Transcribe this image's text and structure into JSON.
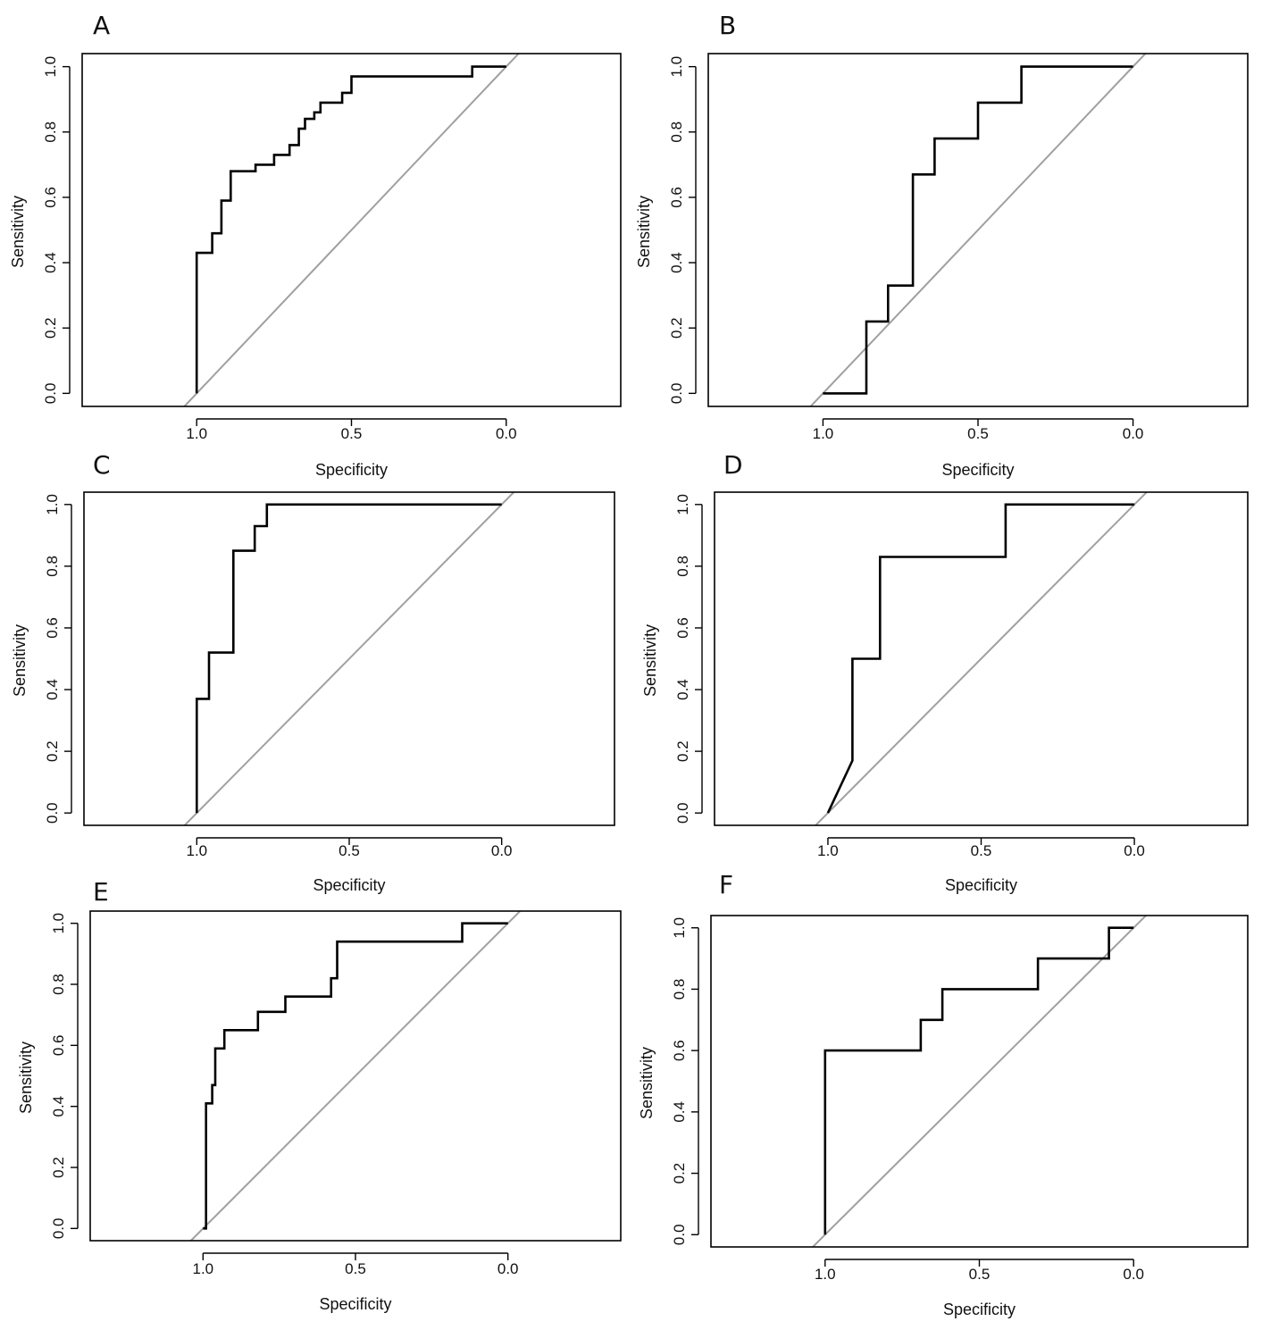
{
  "figure": {
    "panels": [
      "A",
      "B",
      "C",
      "D",
      "E",
      "F"
    ]
  },
  "colors": {
    "roc_curve": "#000000",
    "reference_line": "#a0a0a0",
    "frame": "#000000",
    "background": "#ffffff"
  },
  "chart_data": [
    {
      "panel": "A",
      "type": "line",
      "title": "",
      "xlabel": "Specificity",
      "ylabel": "Sensitivity",
      "xlim": [
        1.37,
        -0.37
      ],
      "ylim": [
        -0.04,
        1.04
      ],
      "x_reversed": true,
      "x_ticks": [
        1.0,
        0.5,
        0.0
      ],
      "x_tick_labels": [
        "1.0",
        "0.5",
        "0.0"
      ],
      "y_ticks": [
        0.0,
        0.2,
        0.4,
        0.6,
        0.8,
        1.0
      ],
      "y_tick_labels": [
        "0.0",
        "0.2",
        "0.4",
        "0.6",
        "0.8",
        "1.0"
      ],
      "series": [
        {
          "name": "ROC",
          "specificity": [
            1.0,
            1.0,
            0.95,
            0.95,
            0.92,
            0.92,
            0.89,
            0.89,
            0.81,
            0.81,
            0.75,
            0.75,
            0.7,
            0.7,
            0.67,
            0.67,
            0.65,
            0.65,
            0.62,
            0.62,
            0.6,
            0.6,
            0.58,
            0.58,
            0.53,
            0.53,
            0.5,
            0.5,
            0.11,
            0.11,
            0.0
          ],
          "sensitivity": [
            0.0,
            0.43,
            0.43,
            0.49,
            0.49,
            0.59,
            0.59,
            0.68,
            0.68,
            0.7,
            0.7,
            0.73,
            0.73,
            0.76,
            0.76,
            0.81,
            0.81,
            0.84,
            0.84,
            0.86,
            0.86,
            0.89,
            0.89,
            0.89,
            0.89,
            0.92,
            0.92,
            0.97,
            0.97,
            1.0,
            1.0
          ]
        },
        {
          "name": "reference",
          "specificity": [
            1.04,
            -0.04
          ],
          "sensitivity": [
            -0.04,
            1.04
          ]
        }
      ]
    },
    {
      "panel": "B",
      "type": "line",
      "title": "",
      "xlabel": "Specificity",
      "ylabel": "Sensitivity",
      "xlim": [
        1.37,
        -0.37
      ],
      "ylim": [
        -0.04,
        1.04
      ],
      "x_reversed": true,
      "x_ticks": [
        1.0,
        0.5,
        0.0
      ],
      "x_tick_labels": [
        "1.0",
        "0.5",
        "0.0"
      ],
      "y_ticks": [
        0.0,
        0.2,
        0.4,
        0.6,
        0.8,
        1.0
      ],
      "y_tick_labels": [
        "0.0",
        "0.2",
        "0.4",
        "0.6",
        "0.8",
        "1.0"
      ],
      "series": [
        {
          "name": "ROC",
          "specificity": [
            1.0,
            0.86,
            0.86,
            0.79,
            0.79,
            0.71,
            0.71,
            0.64,
            0.64,
            0.5,
            0.5,
            0.36,
            0.36,
            0.0
          ],
          "sensitivity": [
            0.0,
            0.0,
            0.22,
            0.22,
            0.33,
            0.33,
            0.67,
            0.67,
            0.78,
            0.78,
            0.89,
            0.89,
            1.0,
            1.0
          ]
        },
        {
          "name": "reference",
          "specificity": [
            1.04,
            -0.04
          ],
          "sensitivity": [
            -0.04,
            1.04
          ]
        }
      ]
    },
    {
      "panel": "C",
      "type": "line",
      "title": "",
      "xlabel": "Specificity",
      "ylabel": "Sensitivity",
      "xlim": [
        1.37,
        -0.37
      ],
      "ylim": [
        -0.04,
        1.04
      ],
      "x_reversed": true,
      "x_ticks": [
        1.0,
        0.5,
        0.0
      ],
      "x_tick_labels": [
        "1.0",
        "0.5",
        "0.0"
      ],
      "y_ticks": [
        0.0,
        0.2,
        0.4,
        0.6,
        0.8,
        1.0
      ],
      "y_tick_labels": [
        "0.0",
        "0.2",
        "0.4",
        "0.6",
        "0.8",
        "1.0"
      ],
      "series": [
        {
          "name": "ROC",
          "specificity": [
            1.0,
            1.0,
            0.96,
            0.96,
            0.88,
            0.88,
            0.81,
            0.81,
            0.77,
            0.77,
            0.0
          ],
          "sensitivity": [
            0.0,
            0.37,
            0.37,
            0.52,
            0.52,
            0.85,
            0.85,
            0.93,
            0.93,
            1.0,
            1.0
          ]
        },
        {
          "name": "reference",
          "specificity": [
            1.04,
            -0.04
          ],
          "sensitivity": [
            -0.04,
            1.04
          ]
        }
      ]
    },
    {
      "panel": "D",
      "type": "line",
      "title": "",
      "xlabel": "Specificity",
      "ylabel": "Sensitivity",
      "xlim": [
        1.37,
        -0.37
      ],
      "ylim": [
        -0.04,
        1.04
      ],
      "x_reversed": true,
      "x_ticks": [
        1.0,
        0.5,
        0.0
      ],
      "x_tick_labels": [
        "1.0",
        "0.5",
        "0.0"
      ],
      "y_ticks": [
        0.0,
        0.2,
        0.4,
        0.6,
        0.8,
        1.0
      ],
      "y_tick_labels": [
        "0.0",
        "0.2",
        "0.4",
        "0.6",
        "0.8",
        "1.0"
      ],
      "series": [
        {
          "name": "ROC",
          "specificity": [
            1.0,
            0.92,
            0.92,
            0.83,
            0.83,
            0.42,
            0.42,
            0.0
          ],
          "sensitivity": [
            0.0,
            0.17,
            0.5,
            0.5,
            0.83,
            0.83,
            1.0,
            1.0
          ]
        },
        {
          "name": "reference",
          "specificity": [
            1.04,
            -0.04
          ],
          "sensitivity": [
            -0.04,
            1.04
          ]
        }
      ]
    },
    {
      "panel": "E",
      "type": "line",
      "title": "",
      "xlabel": "Specificity",
      "ylabel": "Sensitivity",
      "xlim": [
        1.37,
        -0.37
      ],
      "ylim": [
        -0.04,
        1.04
      ],
      "x_reversed": true,
      "x_ticks": [
        1.0,
        0.5,
        0.0
      ],
      "x_tick_labels": [
        "1.0",
        "0.5",
        "0.0"
      ],
      "y_ticks": [
        0.0,
        0.2,
        0.4,
        0.6,
        0.8,
        1.0
      ],
      "y_tick_labels": [
        "0.0",
        "0.2",
        "0.4",
        "0.6",
        "0.8",
        "1.0"
      ],
      "series": [
        {
          "name": "ROC",
          "specificity": [
            1.0,
            0.99,
            0.99,
            0.97,
            0.97,
            0.96,
            0.96,
            0.93,
            0.93,
            0.82,
            0.82,
            0.73,
            0.73,
            0.58,
            0.58,
            0.56,
            0.56,
            0.15,
            0.15,
            0.0
          ],
          "sensitivity": [
            0.0,
            0.0,
            0.41,
            0.41,
            0.47,
            0.47,
            0.59,
            0.59,
            0.65,
            0.65,
            0.71,
            0.71,
            0.76,
            0.76,
            0.82,
            0.82,
            0.94,
            0.94,
            1.0,
            1.0
          ]
        },
        {
          "name": "reference",
          "specificity": [
            1.04,
            -0.04
          ],
          "sensitivity": [
            -0.04,
            1.04
          ]
        }
      ]
    },
    {
      "panel": "F",
      "type": "line",
      "title": "",
      "xlabel": "Specificity",
      "ylabel": "Sensitivity",
      "xlim": [
        1.37,
        -0.37
      ],
      "ylim": [
        -0.04,
        1.04
      ],
      "x_reversed": true,
      "x_ticks": [
        1.0,
        0.5,
        0.0
      ],
      "x_tick_labels": [
        "1.0",
        "0.5",
        "0.0"
      ],
      "y_ticks": [
        0.0,
        0.2,
        0.4,
        0.6,
        0.8,
        1.0
      ],
      "y_tick_labels": [
        "0.0",
        "0.2",
        "0.4",
        "0.6",
        "0.8",
        "1.0"
      ],
      "series": [
        {
          "name": "ROC",
          "specificity": [
            1.0,
            1.0,
            0.69,
            0.69,
            0.62,
            0.62,
            0.31,
            0.31,
            0.08,
            0.08,
            0.0
          ],
          "sensitivity": [
            0.0,
            0.6,
            0.6,
            0.7,
            0.7,
            0.8,
            0.8,
            0.9,
            0.9,
            1.0,
            1.0
          ]
        },
        {
          "name": "reference",
          "specificity": [
            1.04,
            -0.04
          ],
          "sensitivity": [
            -0.04,
            1.04
          ]
        }
      ]
    }
  ]
}
